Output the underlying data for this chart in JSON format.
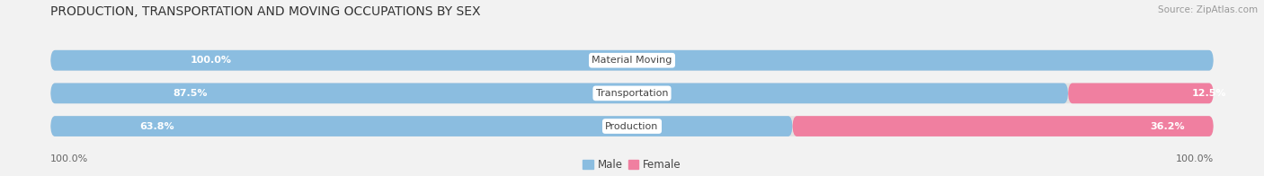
{
  "title": "PRODUCTION, TRANSPORTATION AND MOVING OCCUPATIONS BY SEX",
  "source": "Source: ZipAtlas.com",
  "categories": [
    "Material Moving",
    "Transportation",
    "Production"
  ],
  "male_pct": [
    100.0,
    87.5,
    63.8
  ],
  "female_pct": [
    0.0,
    12.5,
    36.2
  ],
  "male_color": "#8bbde0",
  "female_color": "#f07fa0",
  "male_light": "#c5ddf0",
  "female_light": "#f9c0d0",
  "label_color_male": "#ffffff",
  "label_color_female": "#555555",
  "category_text_color": "#444444",
  "bg_color": "#f2f2f2",
  "bar_bg_color": "#e2e2e2",
  "axis_label_left": "100.0%",
  "axis_label_right": "100.0%",
  "legend_male": "Male",
  "legend_female": "Female",
  "title_fontsize": 10,
  "bar_label_fontsize": 8,
  "cat_label_fontsize": 8,
  "source_fontsize": 7.5
}
